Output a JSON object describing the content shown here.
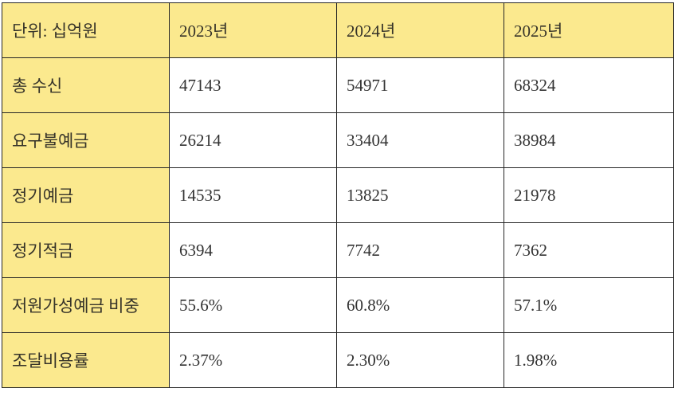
{
  "colors": {
    "header_bg": "#fbe98e",
    "border": "#262626",
    "text": "#333333",
    "page_bg": "#ffffff"
  },
  "table": {
    "unit_label": "단위: 십억원",
    "columns": [
      "2023년",
      "2024년",
      "2025년"
    ],
    "rows": [
      {
        "label": "총 수신",
        "values": [
          "47143",
          "54971",
          "68324"
        ]
      },
      {
        "label": "요구불예금",
        "values": [
          "26214",
          "33404",
          "38984"
        ]
      },
      {
        "label": "정기예금",
        "values": [
          "14535",
          "13825",
          "21978"
        ]
      },
      {
        "label": "정기적금",
        "values": [
          "6394",
          "7742",
          "7362"
        ]
      },
      {
        "label": "저원가성예금 비중",
        "values": [
          "55.6%",
          "60.8%",
          "57.1%"
        ]
      },
      {
        "label": "조달비용률",
        "values": [
          "2.37%",
          "2.30%",
          "1.98%"
        ]
      }
    ]
  },
  "chart_data": {
    "type": "table",
    "title": "단위: 십억원",
    "categories": [
      "2023년",
      "2024년",
      "2025년"
    ],
    "series": [
      {
        "name": "총 수신",
        "values": [
          47143,
          54971,
          68324
        ]
      },
      {
        "name": "요구불예금",
        "values": [
          26214,
          33404,
          38984
        ]
      },
      {
        "name": "정기예금",
        "values": [
          14535,
          13825,
          21978
        ]
      },
      {
        "name": "정기적금",
        "values": [
          6394,
          7742,
          7362
        ]
      },
      {
        "name": "저원가성예금 비중",
        "values": [
          "55.6%",
          "60.8%",
          "57.1%"
        ]
      },
      {
        "name": "조달비용률",
        "values": [
          "2.37%",
          "2.30%",
          "1.98%"
        ]
      }
    ]
  }
}
